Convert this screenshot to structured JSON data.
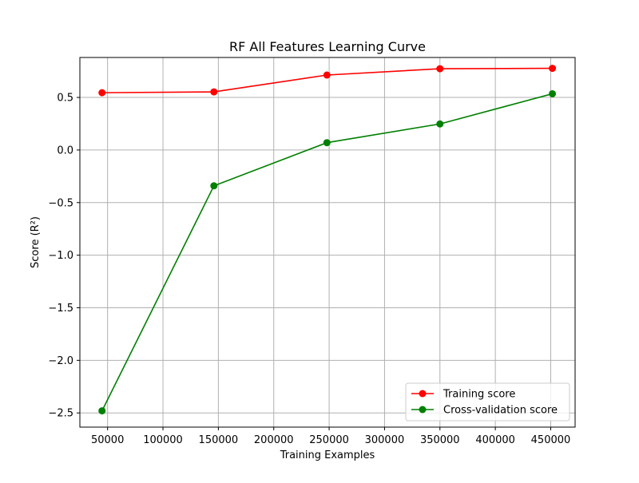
{
  "chart_data": {
    "type": "line",
    "title": "RF All Features Learning Curve",
    "xlabel": "Training Examples",
    "ylabel": "Score (R²)",
    "x": [
      45000,
      146000,
      248000,
      350000,
      451500
    ],
    "xlim": [
      25000,
      472000
    ],
    "ylim": [
      -2.635,
      0.88
    ],
    "xticks": [
      50000,
      100000,
      150000,
      200000,
      250000,
      300000,
      350000,
      400000,
      450000
    ],
    "xtick_labels": [
      "50000",
      "100000",
      "150000",
      "200000",
      "250000",
      "300000",
      "350000",
      "400000",
      "450000"
    ],
    "yticks": [
      0.5,
      0.0,
      -0.5,
      -1.0,
      -1.5,
      -2.0,
      -2.5
    ],
    "ytick_labels": [
      "0.5",
      "0.0",
      "−0.5",
      "−1.0",
      "−1.5",
      "−2.0",
      "−2.5"
    ],
    "grid": true,
    "legend_position": "lower-right",
    "series": [
      {
        "name": "Training score",
        "color": "#ff0000",
        "marker": "circle",
        "values": [
          0.545,
          0.553,
          0.713,
          0.773,
          0.777
        ]
      },
      {
        "name": "Cross-validation score",
        "color": "#008000",
        "marker": "circle",
        "values": [
          -2.48,
          -0.34,
          0.07,
          0.248,
          0.535
        ]
      }
    ]
  }
}
